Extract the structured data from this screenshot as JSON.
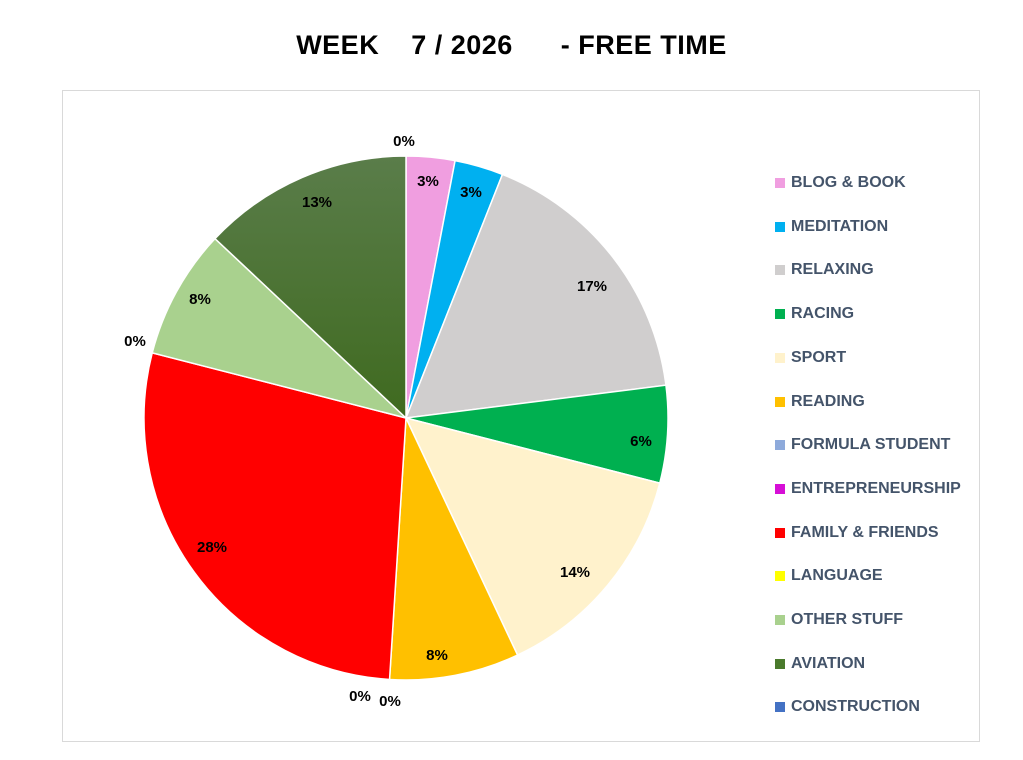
{
  "chart_data": {
    "type": "pie",
    "title": "WEEK    7 / 2026      - FREE TIME",
    "categories": [
      "BLOG & BOOK",
      "MEDITATION",
      "RELAXING",
      "RACING",
      "SPORT",
      "READING",
      "FORMULA STUDENT",
      "ENTREPRENEURSHIP",
      "FAMILY & FRIENDS",
      "LANGUAGE",
      "OTHER STUFF",
      "AVIATION",
      "CONSTRUCTION"
    ],
    "values": [
      3,
      3,
      17,
      6,
      14,
      8,
      0,
      0,
      28,
      0,
      8,
      13,
      0
    ],
    "data_labels": [
      "3%",
      "3%",
      "17%",
      "6%",
      "14%",
      "8%",
      "0%",
      "0%",
      "28%",
      "0%",
      "8%",
      "13%",
      "0%"
    ],
    "colors": [
      "#f09ee0",
      "#00b0f0",
      "#d0cece",
      "#00b050",
      "#fff2cc",
      "#ffc000",
      "#8eaadb",
      "#d60fd6",
      "#ff0000",
      "#ffff00",
      "#a9d18e",
      "#4a7a2c",
      "#4472c4"
    ],
    "legend_position": "right",
    "start_angle_deg": 0,
    "direction": "clockwise"
  }
}
